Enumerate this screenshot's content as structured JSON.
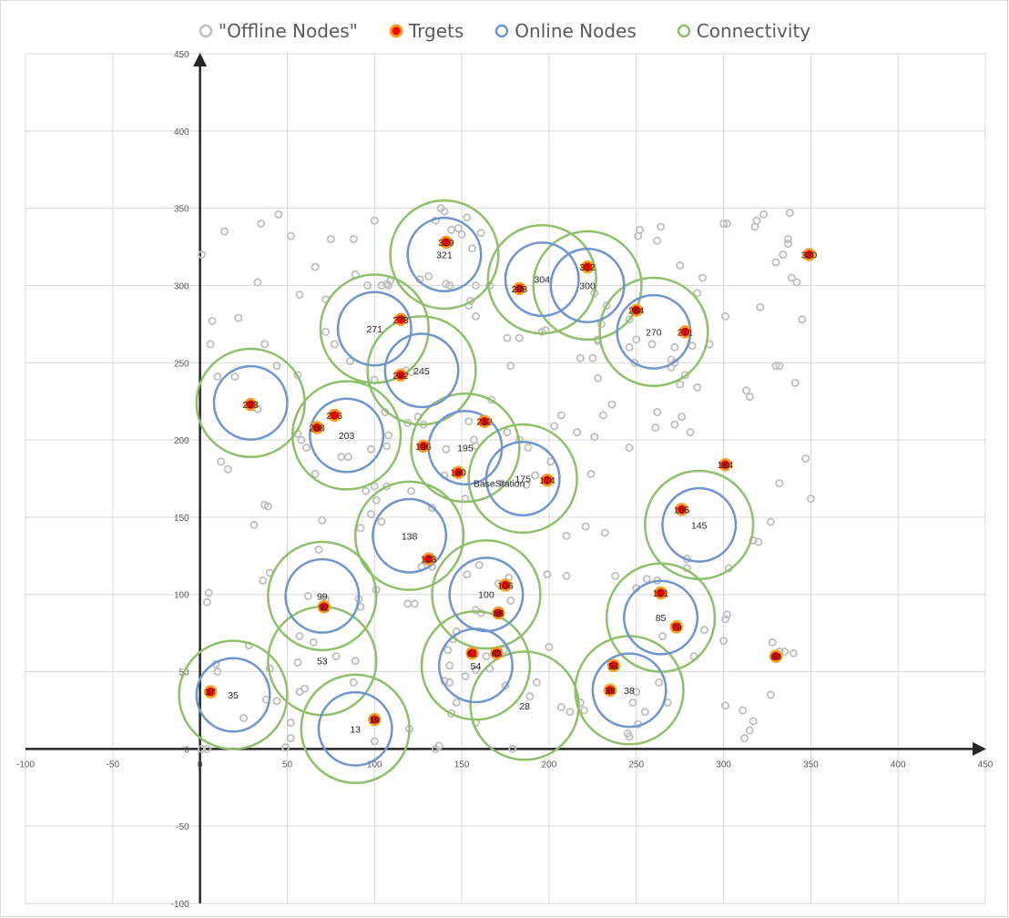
{
  "chart_data": {
    "type": "scatter",
    "title": "",
    "xlabel": "",
    "ylabel": "",
    "xlim": [
      -100,
      450
    ],
    "ylim": [
      -100,
      450
    ],
    "xticks": [
      "-100",
      "-50",
      "0",
      "50",
      "100",
      "150",
      "200",
      "250",
      "300",
      "350",
      "400",
      "450"
    ],
    "yticks": [
      "-100",
      "-50",
      "0",
      "50",
      "100",
      "150",
      "200",
      "250",
      "300",
      "350",
      "400",
      "450"
    ],
    "grid": true,
    "legend_position": "top",
    "legend": [
      {
        "name": "\"Offline Nodes\"",
        "marker": "offline"
      },
      {
        "name": "Trgets",
        "marker": "target"
      },
      {
        "name": "Online Nodes",
        "marker": "online"
      },
      {
        "name": "Connectivity",
        "marker": "connectivity"
      }
    ],
    "colors": {
      "offline": "#bfbfbf",
      "target_fill": "#ff0000",
      "target_ring": "#f4a020",
      "online": "#7094cd",
      "connectivity": "#8fbf6a",
      "grid": "#d9d9d9",
      "axis": "#262626"
    },
    "base_station": {
      "label": "BaseStation",
      "x": 173,
      "y": 172
    },
    "online_nodes": [
      {
        "label": "321",
        "x": 140,
        "y": 320
      },
      {
        "label": "304",
        "x": 196,
        "y": 304
      },
      {
        "label": "300",
        "x": 222,
        "y": 300
      },
      {
        "label": "271",
        "x": 100,
        "y": 272
      },
      {
        "label": "270",
        "x": 260,
        "y": 270
      },
      {
        "label": "245",
        "x": 127,
        "y": 245
      },
      {
        "label": "",
        "x": 29,
        "y": 224
      },
      {
        "label": "203",
        "x": 84,
        "y": 203
      },
      {
        "label": "195",
        "x": 152,
        "y": 195
      },
      {
        "label": "175",
        "x": 185,
        "y": 175
      },
      {
        "label": "145",
        "x": 286,
        "y": 145
      },
      {
        "label": "138",
        "x": 120,
        "y": 138
      },
      {
        "label": "100",
        "x": 164,
        "y": 100
      },
      {
        "label": "99",
        "x": 70,
        "y": 99
      },
      {
        "label": "85",
        "x": 264,
        "y": 85
      },
      {
        "label": "54",
        "x": 158,
        "y": 54
      },
      {
        "label": "53",
        "x": 70,
        "y": 57
      },
      {
        "label": "38",
        "x": 246,
        "y": 38
      },
      {
        "label": "35",
        "x": 19,
        "y": 35
      },
      {
        "label": "28",
        "x": 186,
        "y": 28
      },
      {
        "label": "13",
        "x": 89,
        "y": 13
      }
    ],
    "no_online_ring": [
      "53",
      "28"
    ],
    "targets": [
      {
        "label": "329",
        "x": 141,
        "y": 328
      },
      {
        "label": "320",
        "x": 349,
        "y": 320
      },
      {
        "label": "312",
        "x": 222,
        "y": 312
      },
      {
        "label": "298",
        "x": 183,
        "y": 298
      },
      {
        "label": "284",
        "x": 250,
        "y": 284
      },
      {
        "label": "278",
        "x": 115,
        "y": 278
      },
      {
        "label": "271",
        "x": 278,
        "y": 270
      },
      {
        "label": "242",
        "x": 115,
        "y": 242
      },
      {
        "label": "223",
        "x": 29,
        "y": 223
      },
      {
        "label": "216",
        "x": 77,
        "y": 216
      },
      {
        "label": "212",
        "x": 163,
        "y": 212
      },
      {
        "label": "208",
        "x": 67,
        "y": 208
      },
      {
        "label": "196",
        "x": 128,
        "y": 196
      },
      {
        "label": "184",
        "x": 301,
        "y": 184
      },
      {
        "label": "180",
        "x": 148,
        "y": 179
      },
      {
        "label": "174",
        "x": 199,
        "y": 174
      },
      {
        "label": "155",
        "x": 276,
        "y": 155
      },
      {
        "label": "123",
        "x": 131,
        "y": 123
      },
      {
        "label": "106",
        "x": 175,
        "y": 106
      },
      {
        "label": "101",
        "x": 264,
        "y": 101
      },
      {
        "label": "92",
        "x": 71,
        "y": 92
      },
      {
        "label": "88",
        "x": 171,
        "y": 88
      },
      {
        "label": "79",
        "x": 273,
        "y": 79
      },
      {
        "label": "63",
        "x": 170,
        "y": 62
      },
      {
        "label": "61",
        "x": 156,
        "y": 62
      },
      {
        "label": "60",
        "x": 330,
        "y": 60
      },
      {
        "label": "54",
        "x": 237,
        "y": 54
      },
      {
        "label": "38",
        "x": 235,
        "y": 38
      },
      {
        "label": "37",
        "x": 6,
        "y": 37
      },
      {
        "label": "19",
        "x": 100,
        "y": 19
      }
    ],
    "offline_nodes": [
      [
        1,
        320
      ],
      [
        7,
        277
      ],
      [
        6,
        262
      ],
      [
        14,
        335
      ],
      [
        22,
        279
      ],
      [
        35,
        340
      ],
      [
        33,
        302
      ],
      [
        37,
        262
      ],
      [
        45,
        346
      ],
      [
        52,
        332
      ],
      [
        57,
        294
      ],
      [
        66,
        312
      ],
      [
        72,
        291
      ],
      [
        75,
        330
      ],
      [
        88,
        330
      ],
      [
        89,
        307
      ],
      [
        96,
        300
      ],
      [
        100,
        342
      ],
      [
        104,
        300
      ],
      [
        107,
        301
      ],
      [
        72,
        270
      ],
      [
        77,
        262
      ],
      [
        118,
        245
      ],
      [
        121,
        244
      ],
      [
        100,
        239
      ],
      [
        86,
        251
      ],
      [
        44,
        248
      ],
      [
        56,
        242
      ],
      [
        10,
        241
      ],
      [
        20,
        241
      ],
      [
        33,
        220
      ],
      [
        58,
        200
      ],
      [
        61,
        195
      ],
      [
        56,
        204
      ],
      [
        66,
        178
      ],
      [
        12,
        186
      ],
      [
        16,
        181
      ],
      [
        81,
        189
      ],
      [
        85,
        189
      ],
      [
        98,
        194
      ],
      [
        100,
        170
      ],
      [
        101,
        161
      ],
      [
        98,
        152
      ],
      [
        95,
        167
      ],
      [
        107,
        196
      ],
      [
        108,
        203
      ],
      [
        106,
        218
      ],
      [
        125,
        215
      ],
      [
        128,
        210
      ],
      [
        119,
        211
      ],
      [
        141,
        194
      ],
      [
        154,
        212
      ],
      [
        157,
        200
      ],
      [
        158,
        196
      ],
      [
        167,
        226
      ],
      [
        176,
        205
      ],
      [
        183,
        200
      ],
      [
        188,
        195
      ],
      [
        201,
        186
      ],
      [
        203,
        209
      ],
      [
        207,
        216
      ],
      [
        192,
        177
      ],
      [
        187,
        171
      ],
      [
        140,
        177
      ],
      [
        152,
        162
      ],
      [
        133,
        156
      ],
      [
        121,
        167
      ],
      [
        107,
        170
      ],
      [
        104,
        147
      ],
      [
        92,
        143
      ],
      [
        37,
        158
      ],
      [
        39,
        157
      ],
      [
        31,
        145
      ],
      [
        70,
        148
      ],
      [
        68,
        129
      ],
      [
        40,
        114
      ],
      [
        36,
        109
      ],
      [
        5,
        101
      ],
      [
        4,
        95
      ],
      [
        57,
        73
      ],
      [
        65,
        69
      ],
      [
        62,
        99
      ],
      [
        72,
        97
      ],
      [
        91,
        97
      ],
      [
        92,
        92
      ],
      [
        101,
        103
      ],
      [
        119,
        94
      ],
      [
        123,
        94
      ],
      [
        127,
        118
      ],
      [
        133,
        118
      ],
      [
        153,
        113
      ],
      [
        160,
        119
      ],
      [
        171,
        107
      ],
      [
        178,
        96
      ],
      [
        158,
        90
      ],
      [
        177,
        111
      ],
      [
        199,
        113
      ],
      [
        210,
        138
      ],
      [
        221,
        144
      ],
      [
        216,
        205
      ],
      [
        226,
        202
      ],
      [
        228,
        240
      ],
      [
        231,
        216
      ],
      [
        236,
        223
      ],
      [
        225,
        253
      ],
      [
        228,
        265
      ],
      [
        230,
        275
      ],
      [
        226,
        295
      ],
      [
        233,
        287
      ],
      [
        246,
        278
      ],
      [
        250,
        265
      ],
      [
        246,
        260
      ],
      [
        249,
        250
      ],
      [
        259,
        262
      ],
      [
        262,
        218
      ],
      [
        272,
        210
      ],
      [
        276,
        215
      ],
      [
        281,
        205
      ],
      [
        275,
        236
      ],
      [
        270,
        247
      ],
      [
        272,
        250
      ],
      [
        278,
        242
      ],
      [
        285,
        234
      ],
      [
        285,
        295
      ],
      [
        288,
        305
      ],
      [
        275,
        313
      ],
      [
        262,
        329
      ],
      [
        251,
        332
      ],
      [
        264,
        338
      ],
      [
        252,
        336
      ],
      [
        270,
        252
      ],
      [
        272,
        260
      ],
      [
        282,
        261
      ],
      [
        292,
        262
      ],
      [
        301,
        280
      ],
      [
        300,
        340
      ],
      [
        302,
        340
      ],
      [
        318,
        338
      ],
      [
        319,
        342
      ],
      [
        323,
        346
      ],
      [
        338,
        347
      ],
      [
        337,
        330
      ],
      [
        337,
        327
      ],
      [
        339,
        305
      ],
      [
        342,
        302
      ],
      [
        345,
        278
      ],
      [
        330,
        315
      ],
      [
        334,
        320
      ],
      [
        321,
        286
      ],
      [
        330,
        248
      ],
      [
        332,
        248
      ],
      [
        341,
        237
      ],
      [
        313,
        232
      ],
      [
        315,
        228
      ],
      [
        347,
        188
      ],
      [
        332,
        172
      ],
      [
        350,
        162
      ],
      [
        327,
        147
      ],
      [
        317,
        135
      ],
      [
        320,
        134
      ],
      [
        303,
        117
      ],
      [
        301,
        84
      ],
      [
        302,
        87
      ],
      [
        300,
        70
      ],
      [
        289,
        77
      ],
      [
        283,
        60
      ],
      [
        279,
        117
      ],
      [
        279,
        123
      ],
      [
        262,
        109
      ],
      [
        256,
        110
      ],
      [
        250,
        104
      ],
      [
        238,
        112
      ],
      [
        246,
        195
      ],
      [
        261,
        208
      ],
      [
        232,
        140
      ],
      [
        224,
        178
      ],
      [
        218,
        30
      ],
      [
        220,
        25
      ],
      [
        207,
        27
      ],
      [
        212,
        24
      ],
      [
        200,
        66
      ],
      [
        193,
        43
      ],
      [
        179,
        0
      ],
      [
        158,
        17
      ],
      [
        144,
        23
      ],
      [
        137,
        2
      ],
      [
        145,
        71
      ],
      [
        147,
        76
      ],
      [
        161,
        88
      ],
      [
        174,
        64
      ],
      [
        140,
        44
      ],
      [
        142,
        64
      ],
      [
        143,
        43
      ],
      [
        147,
        30
      ],
      [
        152,
        47
      ],
      [
        158,
        51
      ],
      [
        164,
        60
      ],
      [
        166,
        52
      ],
      [
        175,
        41
      ],
      [
        189,
        34
      ],
      [
        210,
        112
      ],
      [
        199,
        113
      ],
      [
        250,
        37
      ],
      [
        255,
        24
      ],
      [
        263,
        43
      ],
      [
        265,
        73
      ],
      [
        268,
        30
      ],
      [
        251,
        16
      ],
      [
        245,
        10
      ],
      [
        246,
        8
      ],
      [
        248,
        30
      ],
      [
        301,
        28
      ],
      [
        311,
        25
      ],
      [
        312,
        7
      ],
      [
        315,
        12
      ],
      [
        317,
        18
      ],
      [
        327,
        35
      ],
      [
        328,
        69
      ],
      [
        335,
        63
      ],
      [
        340,
        62
      ],
      [
        332,
        63
      ],
      [
        89,
        57
      ],
      [
        88,
        43
      ],
      [
        78,
        60
      ],
      [
        56,
        56
      ],
      [
        57,
        37
      ],
      [
        60,
        39
      ],
      [
        52,
        17
      ],
      [
        52,
        7
      ],
      [
        49,
        1
      ],
      [
        44,
        31
      ],
      [
        38,
        32
      ],
      [
        40,
        52
      ],
      [
        28,
        67
      ],
      [
        25,
        20
      ],
      [
        9,
        55
      ],
      [
        10,
        50
      ],
      [
        4,
        0
      ],
      [
        1,
        0
      ],
      [
        100,
        5
      ],
      [
        120,
        13
      ],
      [
        135,
        0
      ],
      [
        143,
        54
      ],
      [
        150,
        333
      ],
      [
        156,
        324
      ],
      [
        158,
        300
      ],
      [
        166,
        300
      ],
      [
        161,
        334
      ],
      [
        144,
        336
      ],
      [
        135,
        342
      ],
      [
        138,
        350
      ],
      [
        140,
        348
      ],
      [
        148,
        337
      ],
      [
        153,
        344
      ],
      [
        154,
        287
      ],
      [
        155,
        290
      ],
      [
        158,
        280
      ],
      [
        131,
        306
      ],
      [
        109,
        303
      ],
      [
        108,
        300
      ],
      [
        126,
        304
      ],
      [
        141,
        301
      ],
      [
        143,
        300
      ],
      [
        176,
        266
      ],
      [
        183,
        266
      ],
      [
        178,
        248
      ],
      [
        196,
        270
      ],
      [
        198,
        271
      ],
      [
        218,
        253
      ],
      [
        228,
        264
      ]
    ]
  }
}
